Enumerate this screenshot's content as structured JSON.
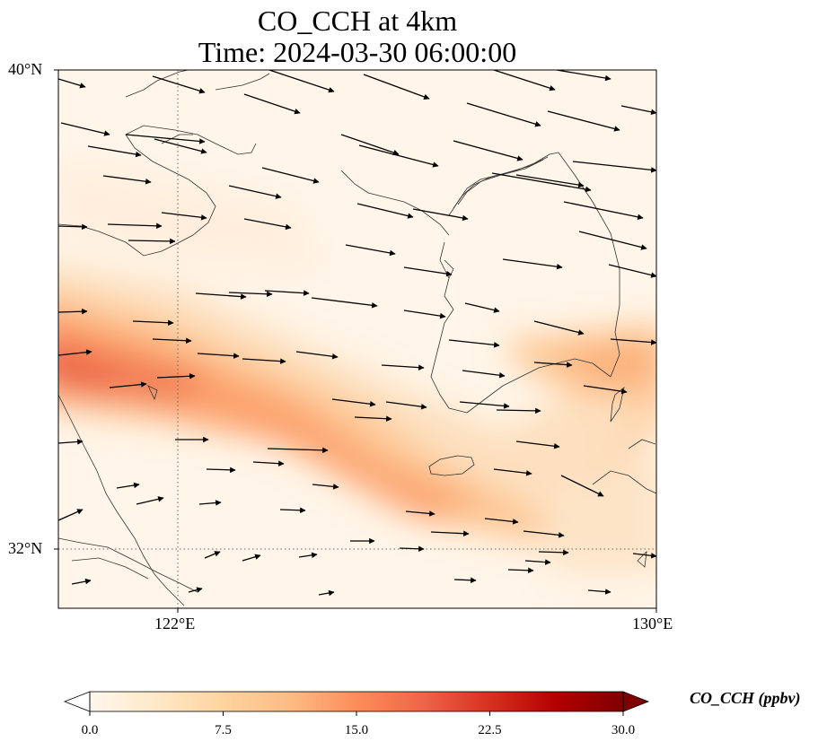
{
  "title": {
    "line1": "CO_CCH at 4km",
    "line2": "Time: 2024-03-30 06:00:00"
  },
  "map": {
    "extent": {
      "lon_min": 120.4,
      "lon_max": 130.0,
      "lat_min": 31.0,
      "lat_max": 40.0
    },
    "gridlines": {
      "lons": [
        122
      ],
      "lats": [
        32
      ],
      "style": "dotted"
    },
    "lat_tick_labels": [
      {
        "lat": 40,
        "label": "40°N"
      },
      {
        "lat": 32,
        "label": "32°N"
      }
    ],
    "lon_tick_labels": [
      {
        "lon": 122,
        "label": "122°E"
      },
      {
        "lon": 130,
        "label": "130°E"
      }
    ],
    "wind_vectors": "westerly winds, ~west-to-east, slightly southward in north"
  },
  "colorbar": {
    "label": "CO_CCH (ppbv)",
    "min": 0.0,
    "max": 30.0,
    "ticks": [
      "0.0",
      "7.5",
      "15.0",
      "22.5",
      "30.0"
    ],
    "colormap": "OrRd",
    "colors": [
      "#fff7ec",
      "#fee8c8",
      "#fdd49e",
      "#fdbb84",
      "#fc8d59",
      "#ef6548",
      "#d7301f",
      "#b30000",
      "#7f0000"
    ],
    "extend": "both"
  }
}
